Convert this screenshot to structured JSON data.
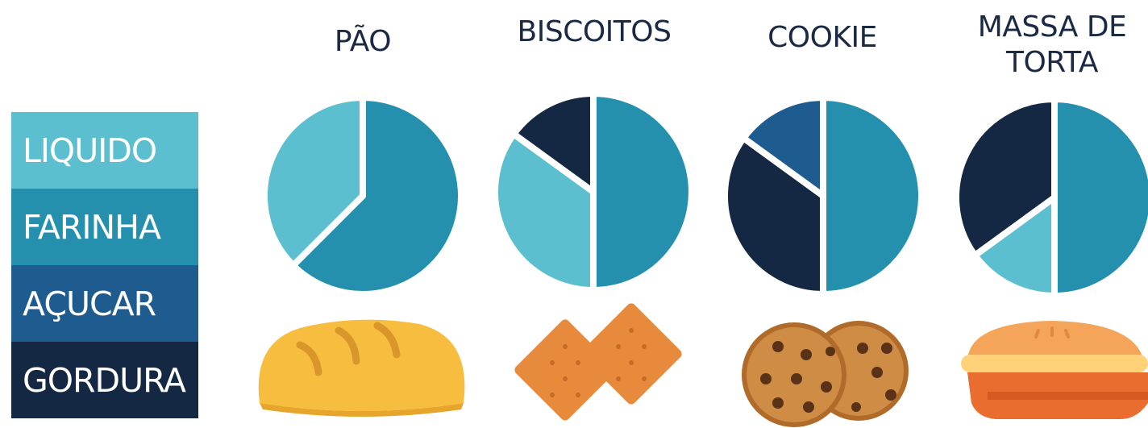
{
  "legend": [
    {
      "label": "LIQUIDO",
      "color": "#5bbfd0"
    },
    {
      "label": "FARINHA",
      "color": "#2490ae"
    },
    {
      "label": "AÇUCAR",
      "color": "#1e5b8f"
    },
    {
      "label": "GORDURA",
      "color": "#152843"
    }
  ],
  "chart_data": [
    {
      "type": "pie",
      "title": "PÃO",
      "icon": "bread-icon",
      "slices": [
        {
          "name": "FARINHA",
          "value": 62.5
        },
        {
          "name": "LIQUIDO",
          "value": 37.5
        }
      ]
    },
    {
      "type": "pie",
      "title": "BISCOITOS",
      "icon": "crackers-icon",
      "slices": [
        {
          "name": "FARINHA",
          "value": 50
        },
        {
          "name": "LIQUIDO",
          "value": 35
        },
        {
          "name": "GORDURA",
          "value": 15
        }
      ]
    },
    {
      "type": "pie",
      "title": "COOKIE",
      "icon": "cookies-icon",
      "slices": [
        {
          "name": "FARINHA",
          "value": 50
        },
        {
          "name": "GORDURA",
          "value": 35
        },
        {
          "name": "AÇUCAR",
          "value": 15
        }
      ]
    },
    {
      "type": "pie",
      "title": "MASSA DE\nTORTA",
      "icon": "pie-icon",
      "slices": [
        {
          "name": "FARINHA",
          "value": 50
        },
        {
          "name": "LIQUIDO",
          "value": 15
        },
        {
          "name": "GORDURA",
          "value": 35
        }
      ]
    }
  ]
}
